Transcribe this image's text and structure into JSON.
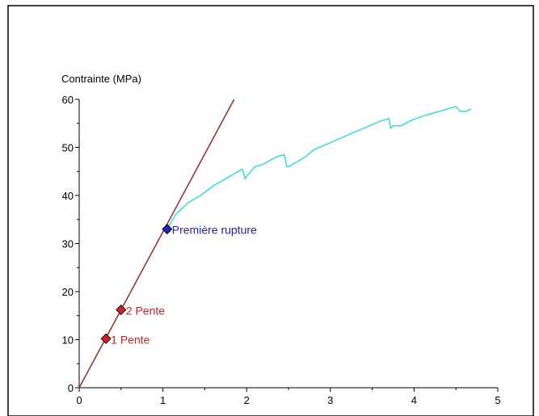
{
  "chart_data": {
    "type": "line",
    "ylabel": "Contrainte (MPa)",
    "xlabel": "",
    "xlim": [
      0,
      5
    ],
    "ylim": [
      0,
      60
    ],
    "x_ticks": [
      0,
      1,
      2,
      3,
      4,
      5
    ],
    "y_ticks": [
      0,
      10,
      20,
      30,
      40,
      50,
      60
    ],
    "grid": false,
    "series": [
      {
        "color": "#9b2a2a",
        "x": [
          0,
          1.85
        ],
        "y": [
          0,
          60
        ]
      },
      {
        "color": "#33dede",
        "x": [
          1.05,
          1.15,
          1.3,
          1.45,
          1.6,
          1.75,
          1.9,
          1.95,
          1.98,
          2.0,
          2.1,
          2.2,
          2.3,
          2.35,
          2.45,
          2.48,
          2.5,
          2.6,
          2.7,
          2.8,
          3.0,
          3.2,
          3.4,
          3.6,
          3.7,
          3.72,
          3.75,
          3.85,
          3.95,
          4.1,
          4.3,
          4.5,
          4.55,
          4.58,
          4.62,
          4.68
        ],
        "y": [
          33,
          36,
          38.5,
          40,
          42,
          43.5,
          45,
          45.5,
          43.5,
          44,
          46,
          46.5,
          47.5,
          48,
          48.5,
          46,
          46,
          47,
          48,
          49.5,
          51,
          52.5,
          54,
          55.5,
          56,
          54,
          54.5,
          54.5,
          55.5,
          56.5,
          57.5,
          58.5,
          57.5,
          57.5,
          57.5,
          58
        ]
      }
    ],
    "points": [
      {
        "label": "1 Pente",
        "x": 0.32,
        "y": 10.2,
        "color": "#cc2222",
        "text_color": "#cc2222"
      },
      {
        "label": "2 Pente",
        "x": 0.5,
        "y": 16.2,
        "color": "#cc2222",
        "text_color": "#cc2222"
      },
      {
        "label": "Première rupture",
        "x": 1.05,
        "y": 33,
        "color": "#2222aa",
        "text_color": "#2222aa"
      }
    ]
  }
}
